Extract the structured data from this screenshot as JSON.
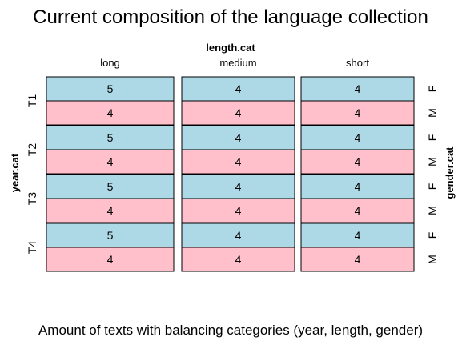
{
  "chart_data": {
    "type": "mosaic",
    "title": "Current composition of the language collection",
    "caption": "Amount of texts with balancing categories (year, length, gender)",
    "column_variable": "length.cat",
    "row_variable": "year.cat",
    "fill_variable": "gender.cat",
    "columns": [
      "long",
      "medium",
      "short"
    ],
    "rows": [
      "T1",
      "T2",
      "T3",
      "T4"
    ],
    "genders": [
      "F",
      "M"
    ],
    "colors": {
      "F": "#add8e6",
      "M": "#ffc0cb",
      "border": "#000000"
    },
    "values": {
      "T1": {
        "long": {
          "F": 5,
          "M": 4
        },
        "medium": {
          "F": 4,
          "M": 4
        },
        "short": {
          "F": 4,
          "M": 4
        }
      },
      "T2": {
        "long": {
          "F": 5,
          "M": 4
        },
        "medium": {
          "F": 4,
          "M": 4
        },
        "short": {
          "F": 4,
          "M": 4
        }
      },
      "T3": {
        "long": {
          "F": 5,
          "M": 4
        },
        "medium": {
          "F": 4,
          "M": 4
        },
        "short": {
          "F": 4,
          "M": 4
        }
      },
      "T4": {
        "long": {
          "F": 5,
          "M": 4
        },
        "medium": {
          "F": 4,
          "M": 4
        },
        "short": {
          "F": 4,
          "M": 4
        }
      }
    }
  }
}
